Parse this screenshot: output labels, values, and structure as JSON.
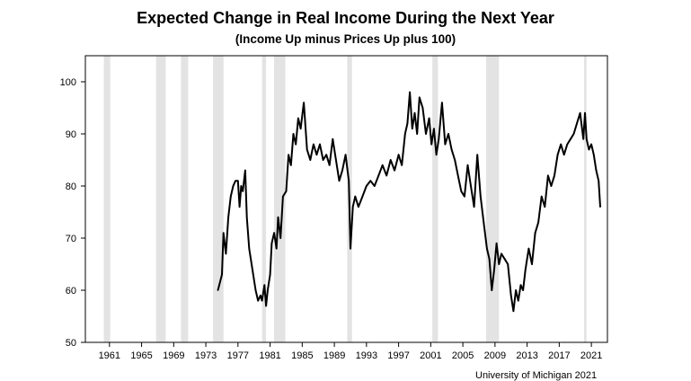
{
  "chart_data": {
    "type": "line",
    "title": "Expected Change in Real Income During the Next Year",
    "subtitle": "(Income Up minus Prices Up plus 100)",
    "source": "University of Michigan 2021",
    "xlabel": "",
    "ylabel": "",
    "xlim": [
      1958,
      2023
    ],
    "ylim": [
      50,
      105
    ],
    "y_ticks": [
      50,
      60,
      70,
      80,
      90,
      100
    ],
    "x_ticks": [
      1961,
      1965,
      1969,
      1973,
      1977,
      1981,
      1985,
      1989,
      1993,
      1997,
      2001,
      2005,
      2009,
      2013,
      2017,
      2021
    ],
    "grid": false,
    "legend": "none",
    "line_color": "#000000",
    "recession_color": "#e3e3e3",
    "recessions": [
      [
        1960.3,
        1961.1
      ],
      [
        1966.8,
        1968.0
      ],
      [
        1969.9,
        1970.8
      ],
      [
        1973.9,
        1975.2
      ],
      [
        1980.0,
        1980.5
      ],
      [
        1981.5,
        1982.9
      ],
      [
        1990.6,
        1991.2
      ],
      [
        2001.2,
        2001.9
      ],
      [
        2007.9,
        2009.5
      ],
      [
        2020.1,
        2020.4
      ]
    ],
    "series": [
      {
        "name": "",
        "x": [
          1974.5,
          1975.0,
          1975.2,
          1975.5,
          1975.8,
          1976.1,
          1976.4,
          1976.7,
          1977.0,
          1977.2,
          1977.4,
          1977.6,
          1977.9,
          1978.1,
          1978.4,
          1978.6,
          1978.9,
          1979.2,
          1979.5,
          1979.8,
          1980.0,
          1980.3,
          1980.5,
          1980.7,
          1981.0,
          1981.2,
          1981.5,
          1981.8,
          1982.0,
          1982.3,
          1982.6,
          1983.0,
          1983.3,
          1983.6,
          1983.9,
          1984.2,
          1984.5,
          1984.8,
          1985.2,
          1985.6,
          1986.0,
          1986.4,
          1986.8,
          1987.2,
          1987.6,
          1988.0,
          1988.4,
          1988.8,
          1989.2,
          1989.6,
          1990.0,
          1990.4,
          1990.8,
          1991.0,
          1991.3,
          1991.6,
          1992.0,
          1992.5,
          1993.0,
          1993.5,
          1994.0,
          1994.5,
          1995.0,
          1995.5,
          1996.0,
          1996.5,
          1997.0,
          1997.4,
          1997.8,
          1998.1,
          1998.4,
          1998.7,
          1999.0,
          1999.3,
          1999.6,
          2000.0,
          2000.4,
          2000.8,
          2001.1,
          2001.4,
          2001.7,
          2002.0,
          2002.4,
          2002.8,
          2003.2,
          2003.6,
          2004.0,
          2004.4,
          2004.8,
          2005.2,
          2005.6,
          2006.0,
          2006.4,
          2006.8,
          2007.2,
          2007.6,
          2008.0,
          2008.3,
          2008.6,
          2008.9,
          2009.2,
          2009.5,
          2009.8,
          2010.2,
          2010.6,
          2011.0,
          2011.3,
          2011.6,
          2011.9,
          2012.2,
          2012.5,
          2012.8,
          2013.2,
          2013.6,
          2014.0,
          2014.4,
          2014.8,
          2015.2,
          2015.6,
          2016.0,
          2016.4,
          2016.8,
          2017.2,
          2017.6,
          2018.0,
          2018.4,
          2018.8,
          2019.2,
          2019.6,
          2020.0,
          2020.2,
          2020.4,
          2020.7,
          2021.0,
          2021.3,
          2021.6,
          2021.9,
          2022.1
        ],
        "values": [
          60,
          63,
          71,
          67,
          74,
          78,
          80,
          81,
          81,
          76,
          80,
          79,
          83,
          74,
          68,
          66,
          63,
          60,
          58,
          59,
          58,
          61,
          57,
          60,
          63,
          69,
          71,
          68,
          74,
          70,
          78,
          79,
          86,
          84,
          90,
          88,
          93,
          91,
          96,
          87,
          85,
          88,
          86,
          88,
          85,
          86,
          84,
          89,
          85,
          81,
          83,
          86,
          81,
          68,
          76,
          78,
          76,
          78,
          80,
          81,
          80,
          82,
          84,
          82,
          85,
          83,
          86,
          84,
          90,
          92,
          98,
          91,
          94,
          90,
          97,
          95,
          90,
          93,
          88,
          91,
          86,
          89,
          96,
          88,
          90,
          87,
          85,
          82,
          79,
          78,
          84,
          80,
          76,
          86,
          78,
          73,
          68,
          66,
          60,
          64,
          69,
          65,
          67,
          66,
          65,
          59,
          56,
          60,
          58,
          61,
          60,
          64,
          68,
          65,
          71,
          73,
          78,
          76,
          82,
          80,
          82,
          86,
          88,
          86,
          88,
          89,
          90,
          92,
          94,
          89,
          94,
          89,
          87,
          88,
          86,
          83,
          81,
          76
        ]
      }
    ]
  }
}
